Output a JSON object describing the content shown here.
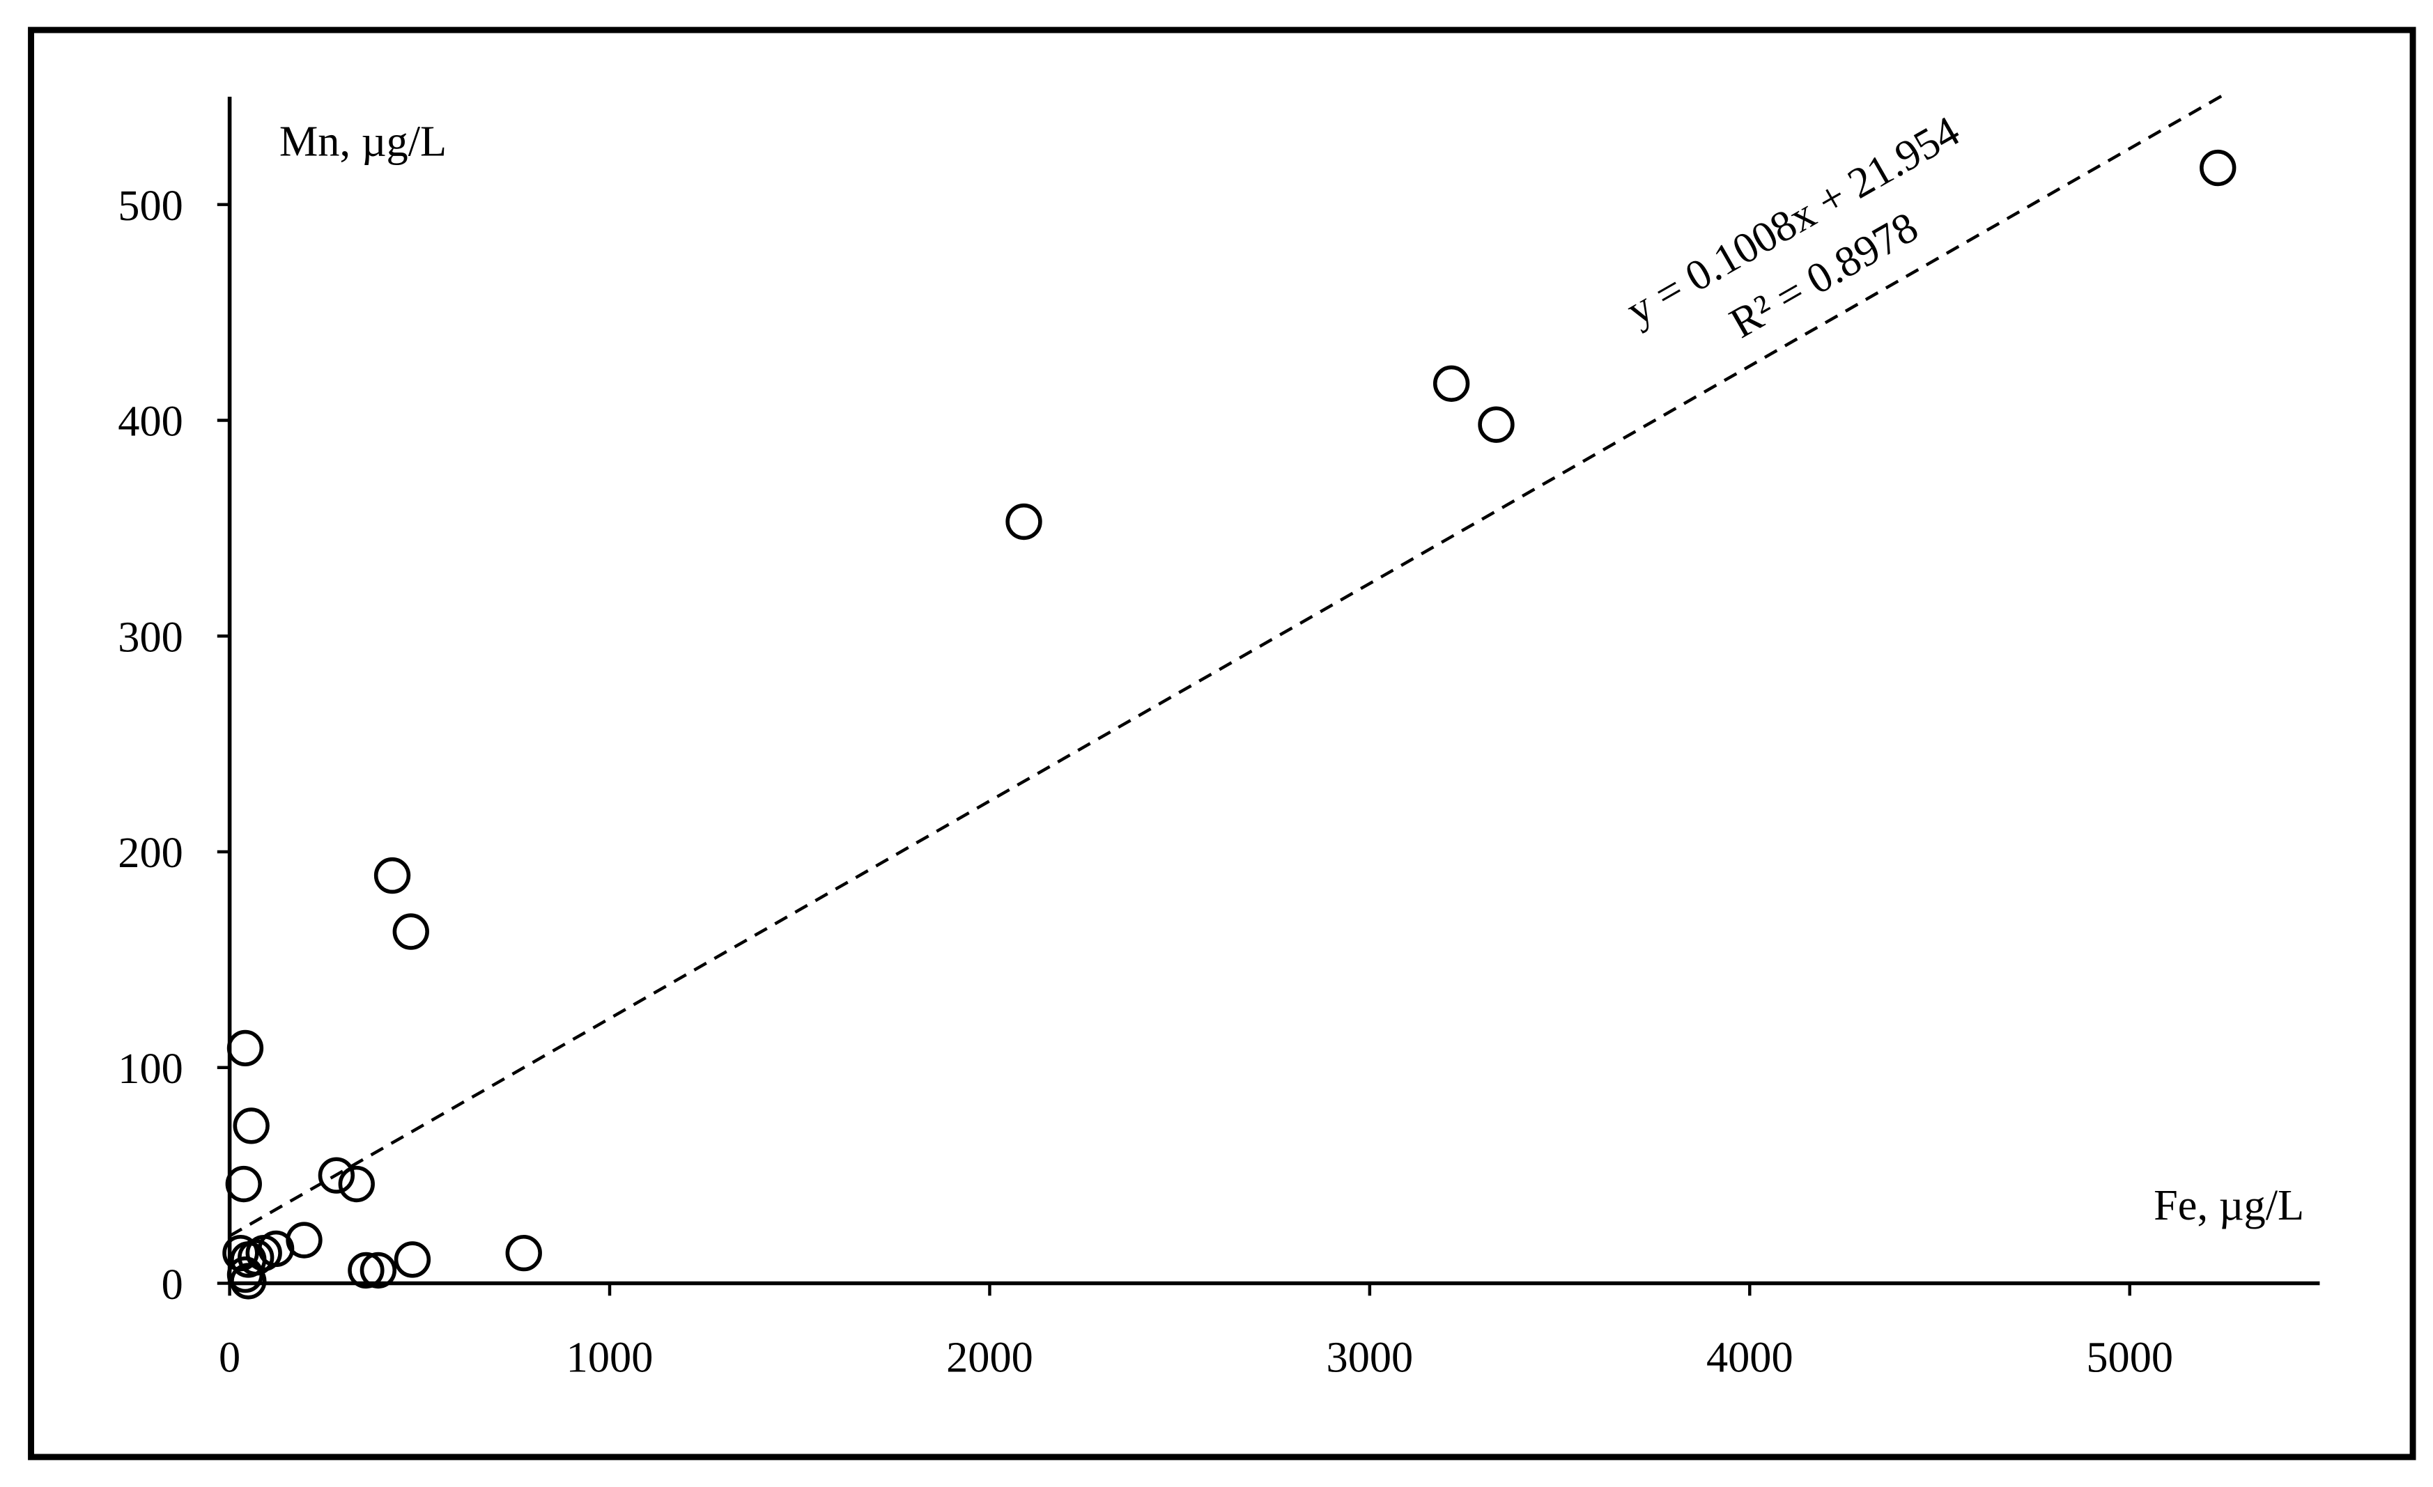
{
  "chart_data": {
    "type": "scatter",
    "x_label": "Fe, µg/L",
    "y_label": "Mn, µg/L",
    "x": [
      5232,
      3215,
      3333,
      2090,
      428,
      477,
      41,
      57,
      37,
      281,
      334,
      196,
      122,
      90,
      29,
      69,
      49,
      481,
      774,
      359,
      391,
      41,
      49
    ],
    "values": [
      517,
      417,
      398,
      353,
      189,
      163,
      109,
      73,
      46,
      50,
      46,
      20,
      16,
      14,
      14,
      12,
      11,
      11,
      14,
      6,
      6,
      4,
      1
    ],
    "color": "#000000",
    "xlim": [
      0,
      5500
    ],
    "xticks": [
      0,
      1000,
      2000,
      3000,
      4000,
      5000
    ],
    "ylim": [
      0,
      550
    ],
    "yticks": [
      0,
      100,
      200,
      300,
      400,
      500
    ],
    "trendline": {
      "slope": 0.1008,
      "intercept": 21.954,
      "xrange": [
        0,
        5250
      ],
      "equation": "y = 0.1008x + 21.954",
      "r2": "R² = 0.8978"
    }
  }
}
